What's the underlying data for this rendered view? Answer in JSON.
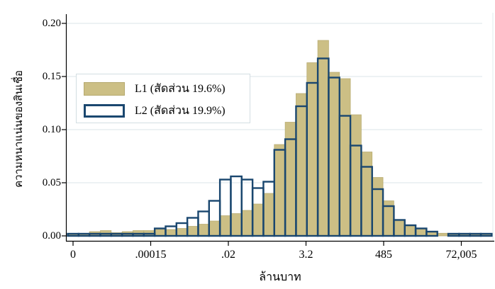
{
  "chart": {
    "y_axis_title": "ความหนาแน่นของสินเชื่อ",
    "x_axis_title": "ล้านบาท",
    "legend": {
      "l1_label": "L1 (สัดส่วน 19.6%)",
      "l2_label": "L2 (สัดส่วน 19.9%)"
    }
  },
  "chart_data": {
    "type": "bar",
    "subtype": "overlaid-histogram",
    "title": "",
    "xlabel": "ล้านบาท",
    "ylabel": "ความหนาแน่นของสินเชื่อ",
    "x_tick_labels": [
      "0",
      ".00015",
      ".02",
      "3.2",
      "485",
      "72,005"
    ],
    "x_scale": "log-like (equally spaced ticks 0, .00015, .02, 3.2, 485, 72,005 million baht)",
    "y_tick_labels": [
      "0.00",
      "0.05",
      "0.10",
      "0.15",
      "0.20"
    ],
    "y_tick_values": [
      0,
      0.05,
      0.1,
      0.15,
      0.2
    ],
    "ylim": [
      0,
      0.2
    ],
    "grid": true,
    "legend_position": "upper-left-inside",
    "n_bins": 39,
    "series": [
      {
        "name": "L1 (สัดส่วน 19.6%)",
        "share_pct_shown": "19.6%",
        "style": "filled",
        "fill": "#ccbf85",
        "edge": "#b5a96e",
        "values": [
          0.002,
          0.002,
          0.004,
          0.005,
          0.003,
          0.004,
          0.005,
          0.005,
          0.006,
          0.006,
          0.007,
          0.009,
          0.011,
          0.014,
          0.019,
          0.021,
          0.024,
          0.03,
          0.04,
          0.086,
          0.107,
          0.134,
          0.163,
          0.184,
          0.154,
          0.148,
          0.114,
          0.079,
          0.055,
          0.033,
          0.014,
          0.009,
          0.0065,
          0.004,
          0.0025,
          0.001,
          0.001,
          0.001,
          0.001
        ]
      },
      {
        "name": "L2 (สัดส่วน 19.9%)",
        "share_pct_shown": "19.9%",
        "style": "outline",
        "stroke": "#1a476f",
        "values": [
          0.002,
          0.002,
          0.002,
          0.002,
          0.002,
          0.002,
          0.002,
          0.002,
          0.007,
          0.009,
          0.012,
          0.017,
          0.023,
          0.033,
          0.053,
          0.056,
          0.053,
          0.045,
          0.051,
          0.081,
          0.091,
          0.122,
          0.144,
          0.167,
          0.149,
          0.113,
          0.085,
          0.065,
          0.044,
          0.028,
          0.015,
          0.01,
          0.007,
          0.004,
          0,
          0.002,
          0.002,
          0.002,
          0.002
        ]
      }
    ],
    "colors": {
      "l1_fill": "#ccbf85",
      "l1_edge": "#b5a96e",
      "l2_stroke": "#1a476f",
      "grid": "#e7eef1",
      "axis": "#000000",
      "background": "#ffffff"
    }
  }
}
